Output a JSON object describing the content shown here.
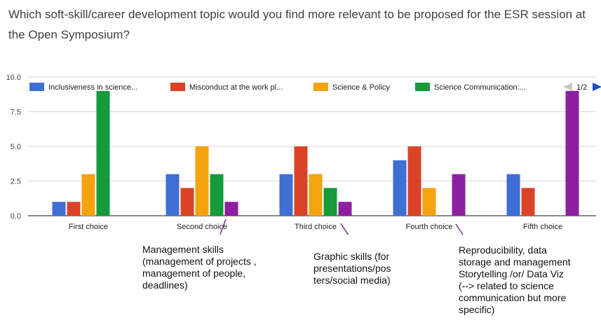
{
  "question": "Which soft-skill/career development topic would you find more relevant to be proposed for the ESR session at the Open Symposium?",
  "pager": {
    "label": "1/2"
  },
  "colors": {
    "grid": "#d9d9d9",
    "axis": "#444444",
    "nav": "#1a49c9",
    "nav_disabled": "#c8c8c8",
    "annotation_line": "#7d2c9b"
  },
  "chart_data": {
    "type": "bar",
    "categories": [
      "First choice",
      "Second choice",
      "Third choice",
      "Fourth choice",
      "Fifth choice"
    ],
    "yticks": [
      "0.0",
      "2.5",
      "5.0",
      "7.5",
      "10.0"
    ],
    "ylim": [
      0,
      10
    ],
    "grid": true,
    "legend_position": "top",
    "series": [
      {
        "name": "Inclusiveness in science...",
        "color": "#3f6fd5",
        "values": [
          1,
          3,
          3,
          4,
          3
        ]
      },
      {
        "name": "Misconduct at the work pl...",
        "color": "#db4327",
        "values": [
          1,
          2,
          5,
          5,
          2
        ]
      },
      {
        "name": "Science & Policy",
        "color": "#f5a30f",
        "values": [
          3,
          5,
          3,
          2,
          0
        ]
      },
      {
        "name": "Science Communication:...",
        "color": "#169a3a",
        "values": [
          9,
          3,
          2,
          0,
          0
        ]
      },
      {
        "name": "",
        "color": "#8e1fa0",
        "values": [
          0,
          1,
          1,
          3,
          9
        ]
      }
    ]
  },
  "annotations": [
    {
      "text": "Management skills\n(management of projects ,\nmanagement of people,\ndeadlines)"
    },
    {
      "text": "Graphic skills (for\npresentations/pos\nters/social media)"
    },
    {
      "text": "Reproducibility, data\n storage and management\nStorytelling /or/ Data Viz\n(--> related to science\ncommunication but more\nspecific)"
    }
  ]
}
